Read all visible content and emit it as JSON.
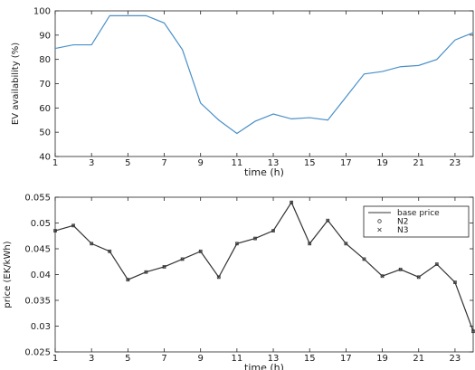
{
  "chart_data": [
    {
      "type": "line",
      "xlabel": "time (h)",
      "ylabel": "EV availability (%)",
      "xlim": [
        1,
        24
      ],
      "ylim": [
        40,
        100
      ],
      "xticks": [
        1,
        3,
        5,
        7,
        9,
        11,
        13,
        15,
        17,
        19,
        21,
        23
      ],
      "yticks": [
        40,
        50,
        60,
        70,
        80,
        90,
        100
      ],
      "grid": false,
      "series": [
        {
          "color": "#4a90c8",
          "x": [
            1,
            2,
            3,
            4,
            5,
            6,
            7,
            8,
            9,
            10,
            11,
            12,
            13,
            14,
            15,
            16,
            17,
            18,
            19,
            20,
            21,
            22,
            23,
            24
          ],
          "values": [
            84.5,
            86,
            86,
            98,
            98,
            98,
            95,
            84,
            62,
            55,
            49.5,
            54.5,
            57.5,
            55.5,
            56,
            55,
            64.5,
            74,
            75,
            77,
            77.5,
            80,
            88,
            91
          ]
        }
      ]
    },
    {
      "type": "line",
      "xlabel": "time (h)",
      "ylabel": "price (EK/kWh)",
      "xlim": [
        1,
        24
      ],
      "ylim": [
        0.025,
        0.055
      ],
      "xticks": [
        1,
        3,
        5,
        7,
        9,
        11,
        13,
        15,
        17,
        19,
        21,
        23
      ],
      "yticks": [
        0.025,
        0.03,
        0.035,
        0.04,
        0.045,
        0.05,
        0.055
      ],
      "ytick_labels": [
        "0.025",
        "0.03",
        "0.035",
        "0.04",
        "0.045",
        "0.05",
        "0.055"
      ],
      "grid": false,
      "legend": "top-right",
      "series": [
        {
          "name": "base price",
          "color": "#333333",
          "x": [
            1,
            2,
            3,
            4,
            5,
            6,
            7,
            8,
            9,
            10,
            11,
            12,
            13,
            14,
            15,
            16,
            17,
            18,
            19,
            20,
            21,
            22,
            23,
            24
          ],
          "values": [
            0.0485,
            0.0495,
            0.046,
            0.0445,
            0.039,
            0.0405,
            0.0415,
            0.043,
            0.0445,
            0.0395,
            0.046,
            0.047,
            0.0485,
            0.054,
            0.046,
            0.0505,
            0.046,
            0.043,
            0.0397,
            0.041,
            0.0395,
            0.042,
            0.0385,
            0.029
          ]
        },
        {
          "name": "N2",
          "color": "#333333",
          "marker": "circle",
          "x": [
            1,
            2,
            3,
            4,
            5,
            6,
            7,
            8,
            9,
            10,
            11,
            12,
            13,
            14,
            15,
            16,
            17,
            18,
            19,
            20,
            21,
            22,
            23,
            24
          ],
          "values": [
            0.0485,
            0.0495,
            0.046,
            0.0445,
            0.039,
            0.0405,
            0.0415,
            0.043,
            0.0445,
            0.0395,
            0.046,
            0.047,
            0.0485,
            0.054,
            0.046,
            0.0505,
            0.046,
            0.043,
            0.0397,
            0.041,
            0.0395,
            0.042,
            0.0385,
            0.029
          ]
        },
        {
          "name": "N3",
          "color": "#333333",
          "marker": "x",
          "x": [
            1,
            2,
            3,
            4,
            5,
            6,
            7,
            8,
            9,
            10,
            11,
            12,
            13,
            14,
            15,
            16,
            17,
            18,
            19,
            20,
            21,
            22,
            23,
            24
          ],
          "values": [
            0.0485,
            0.0495,
            0.046,
            0.0445,
            0.039,
            0.0405,
            0.0415,
            0.043,
            0.0445,
            0.0395,
            0.046,
            0.047,
            0.0485,
            0.054,
            0.046,
            0.0505,
            0.046,
            0.043,
            0.0397,
            0.041,
            0.0395,
            0.042,
            0.0385,
            0.029
          ]
        }
      ]
    }
  ]
}
